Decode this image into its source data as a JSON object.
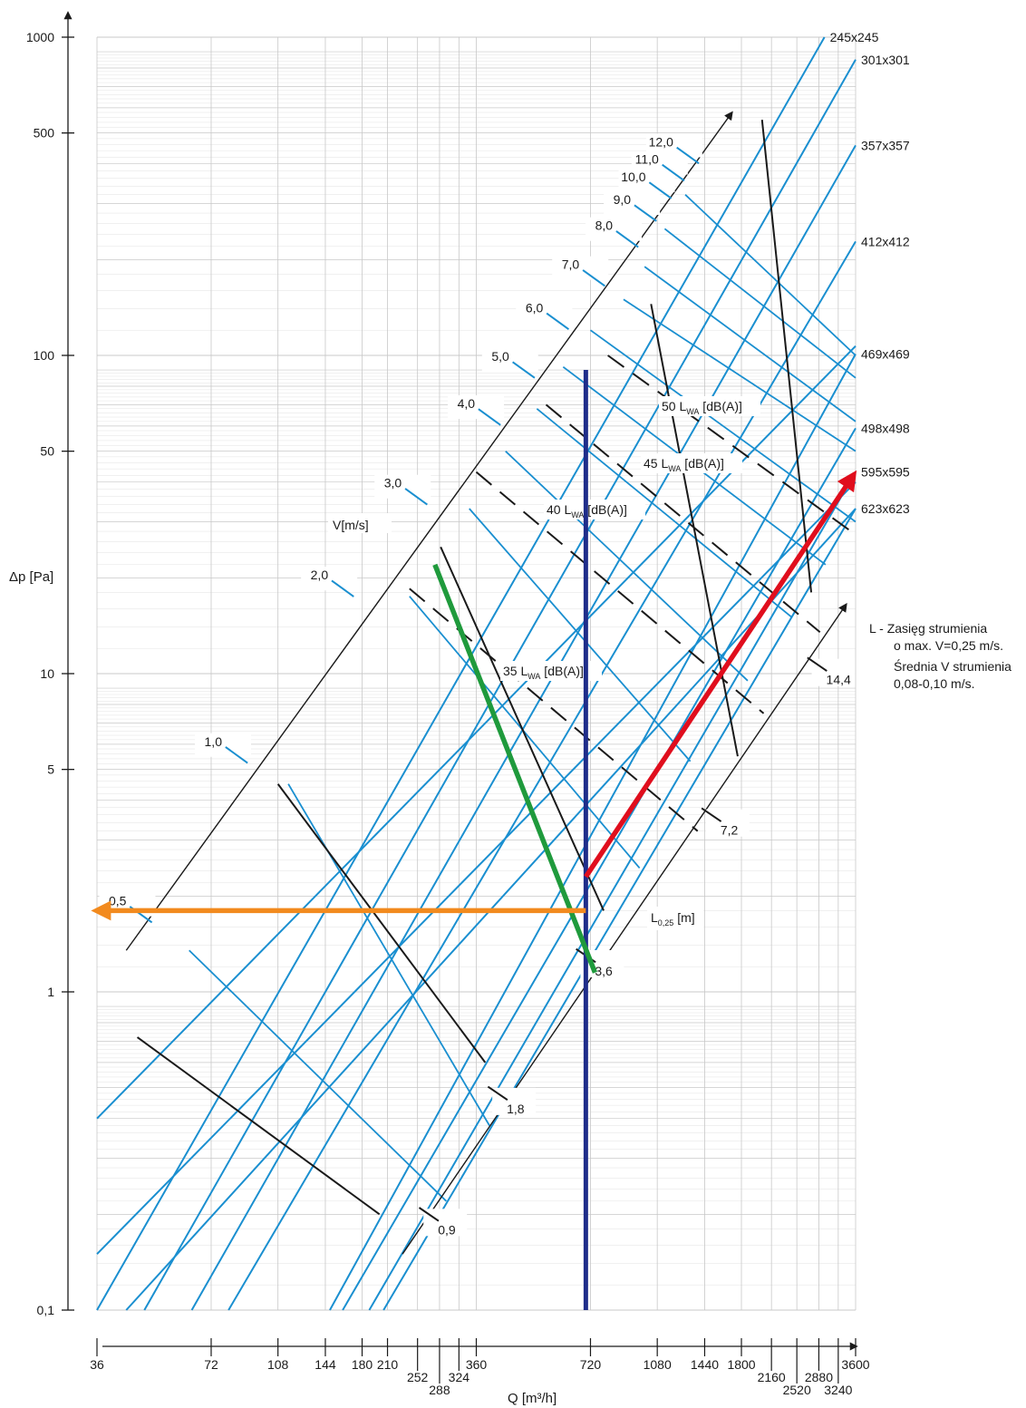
{
  "chart_data": {
    "type": "line",
    "xlabel": "Q [m³/h]",
    "ylabel": "Δp [Pa]",
    "x_scale": "log",
    "y_scale": "log",
    "xlim": [
      36,
      3600
    ],
    "ylim": [
      0.1,
      1000
    ],
    "grid": true,
    "y_ticks": [
      {
        "value": 1000,
        "label": "1000"
      },
      {
        "value": 500,
        "label": "500"
      },
      {
        "value": 100,
        "label": "100"
      },
      {
        "value": 50,
        "label": "50"
      },
      {
        "value": 10,
        "label": "10"
      },
      {
        "value": 5,
        "label": "5"
      },
      {
        "value": 1,
        "label": "1"
      },
      {
        "value": 0.1,
        "label": "0,1"
      }
    ],
    "x_ticks": [
      {
        "value": 36,
        "label": "36",
        "row": 0
      },
      {
        "value": 72,
        "label": "72",
        "row": 0
      },
      {
        "value": 108,
        "label": "108",
        "row": 0
      },
      {
        "value": 144,
        "label": "144",
        "row": 0
      },
      {
        "value": 180,
        "label": "180",
        "row": 0
      },
      {
        "value": 210,
        "label": "210",
        "row": 0
      },
      {
        "value": 252,
        "label": "252",
        "row": 1
      },
      {
        "value": 288,
        "label": "288",
        "row": 2
      },
      {
        "value": 324,
        "label": "324",
        "row": 1
      },
      {
        "value": 360,
        "label": "360",
        "row": 0
      },
      {
        "value": 720,
        "label": "720",
        "row": 0
      },
      {
        "value": 1080,
        "label": "1080",
        "row": 0
      },
      {
        "value": 1440,
        "label": "1440",
        "row": 0
      },
      {
        "value": 1800,
        "label": "1800",
        "row": 0
      },
      {
        "value": 2160,
        "label": "2160",
        "row": 1
      },
      {
        "value": 2520,
        "label": "2520",
        "row": 2
      },
      {
        "value": 2880,
        "label": "2880",
        "row": 1
      },
      {
        "value": 3240,
        "label": "3240",
        "row": 2
      },
      {
        "value": 3600,
        "label": "3600",
        "row": 0
      }
    ],
    "series": [
      {
        "name": "245x245",
        "kind": "size",
        "points": [
          [
            36,
            0.1
          ],
          [
            2980,
            1000
          ]
        ]
      },
      {
        "name": "301x301",
        "kind": "size",
        "points": [
          [
            48,
            0.1
          ],
          [
            3600,
            850
          ]
        ]
      },
      {
        "name": "357x357",
        "kind": "size",
        "points": [
          [
            64,
            0.1
          ],
          [
            3600,
            457
          ]
        ]
      },
      {
        "name": "412x412",
        "kind": "size",
        "points": [
          [
            80,
            0.1
          ],
          [
            3600,
            228
          ]
        ]
      },
      {
        "name": "469x469",
        "kind": "size",
        "points": [
          [
            148,
            0.1
          ],
          [
            3600,
            101
          ]
        ]
      },
      {
        "name": "498x498",
        "kind": "size",
        "points": [
          [
            160,
            0.1
          ],
          [
            3600,
            59
          ]
        ]
      },
      {
        "name": "595x595",
        "kind": "size",
        "points": [
          [
            188,
            0.1
          ],
          [
            3600,
            43
          ]
        ]
      },
      {
        "name": "623x623",
        "kind": "size",
        "points": [
          [
            205,
            0.1
          ],
          [
            3600,
            33
          ]
        ]
      },
      {
        "name": "",
        "kind": "size",
        "points": [
          [
            36,
            0.4
          ],
          [
            3600,
            107
          ]
        ]
      },
      {
        "name": "",
        "kind": "size",
        "points": [
          [
            36,
            0.15
          ],
          [
            3600,
            40
          ]
        ]
      },
      {
        "name": "",
        "kind": "size",
        "points": [
          [
            43,
            0.1
          ],
          [
            3600,
            33
          ]
        ]
      }
    ],
    "velocity_axis": {
      "label": "V[m/s]",
      "line": [
        [
          43,
          1.35
        ],
        [
          1700,
          580
        ]
      ],
      "ticks": [
        {
          "label": "0,5",
          "pos": [
            47,
            1.75
          ]
        },
        {
          "label": "1,0",
          "pos": [
            84,
            5.55
          ]
        },
        {
          "label": "2,0",
          "pos": [
            160,
            18.5
          ]
        },
        {
          "label": "3,0",
          "pos": [
            250,
            36
          ]
        },
        {
          "label": "4,0",
          "pos": [
            390,
            64
          ]
        },
        {
          "label": "5,0",
          "pos": [
            480,
            90
          ]
        },
        {
          "label": "6,0",
          "pos": [
            590,
            128
          ]
        },
        {
          "label": "7,0",
          "pos": [
            735,
            175
          ]
        },
        {
          "label": "8,0",
          "pos": [
            900,
            232
          ]
        },
        {
          "label": "9,0",
          "pos": [
            1005,
            280
          ]
        },
        {
          "label": "10,0",
          "pos": [
            1100,
            330
          ]
        },
        {
          "label": "11,0",
          "pos": [
            1190,
            375
          ]
        },
        {
          "label": "12,0",
          "pos": [
            1300,
            425
          ]
        }
      ]
    },
    "throw_axis": {
      "label": "L0,25 [m]",
      "label_main": "L",
      "label_sub": "0,25",
      "label_unit": "[m]",
      "line": [
        [
          230,
          0.15
        ],
        [
          3400,
          16.5
        ]
      ],
      "ticks": [
        {
          "label": "0,9",
          "pos": [
            270,
            0.2
          ]
        },
        {
          "label": "1,8",
          "pos": [
            410,
            0.48
          ]
        },
        {
          "label": "3,6",
          "pos": [
            700,
            1.3
          ]
        },
        {
          "label": "7,2",
          "pos": [
            1500,
            3.6
          ]
        },
        {
          "label": "14,4",
          "pos": [
            2850,
            10.7
          ]
        }
      ]
    },
    "noise_lines": [
      {
        "label": "35 LWA [dB(A)]",
        "label_main": "35 L",
        "label_sub": "WA",
        "label_unit": "[dB(A)]",
        "points": [
          [
            240,
            18.5
          ],
          [
            1380,
            3.2
          ]
        ]
      },
      {
        "label": "40 LWA [dB(A)]",
        "label_main": "40 L",
        "label_sub": "WA",
        "label_unit": "[dB(A)]",
        "points": [
          [
            360,
            43
          ],
          [
            2060,
            7.5
          ]
        ]
      },
      {
        "label": "45 LWA [dB(A)]",
        "label_main": "45 L",
        "label_sub": "WA",
        "label_unit": "[dB(A)]",
        "points": [
          [
            550,
            70
          ],
          [
            2900,
            13.5
          ]
        ]
      },
      {
        "label": "50 LWA [dB(A)]",
        "label_main": "50 L",
        "label_sub": "WA",
        "label_unit": "[dB(A)]",
        "points": [
          [
            800,
            100
          ],
          [
            3500,
            28
          ]
        ]
      }
    ],
    "black_guides": [
      {
        "points": [
          [
            46,
            0.72
          ],
          [
            200,
            0.2
          ]
        ]
      },
      {
        "points": [
          [
            108,
            4.5
          ],
          [
            380,
            0.6
          ]
        ]
      },
      {
        "points": [
          [
            290,
            25
          ],
          [
            780,
            1.8
          ]
        ]
      },
      {
        "points": [
          [
            1040,
            145
          ],
          [
            1760,
            5.5
          ]
        ]
      },
      {
        "points": [
          [
            2040,
            550
          ],
          [
            2750,
            18
          ]
        ]
      }
    ],
    "highlight_paths": [
      {
        "name": "selected flow",
        "color": "#1f2d8a",
        "points": [
          [
            700,
            90
          ],
          [
            700,
            0.1
          ]
        ]
      },
      {
        "name": "green selection",
        "color": "#1f9a3c",
        "points": [
          [
            280,
            22
          ],
          [
            740,
            1.15
          ]
        ]
      },
      {
        "name": "red selection",
        "color": "#e00e1d",
        "points": [
          [
            700,
            2.3
          ],
          [
            3550,
            42
          ]
        ]
      },
      {
        "name": "orange result",
        "color": "#f28a1e",
        "points": [
          [
            700,
            1.8
          ],
          [
            36,
            1.8
          ]
        ]
      }
    ]
  },
  "notes": {
    "line1": "L - Zasięg strumienia",
    "line2": "o max. V=0,25 m/s.",
    "line3": "Średnia V strumienia",
    "line4": "0,08-0,10 m/s."
  },
  "colors": {
    "size_line": "#1a8fd0",
    "black": "#1a1a1a",
    "grid": "#c8c8c8",
    "blue_vertical": "#1f2d8a",
    "green": "#1f9a3c",
    "red": "#e00e1d",
    "orange": "#f28a1e"
  }
}
